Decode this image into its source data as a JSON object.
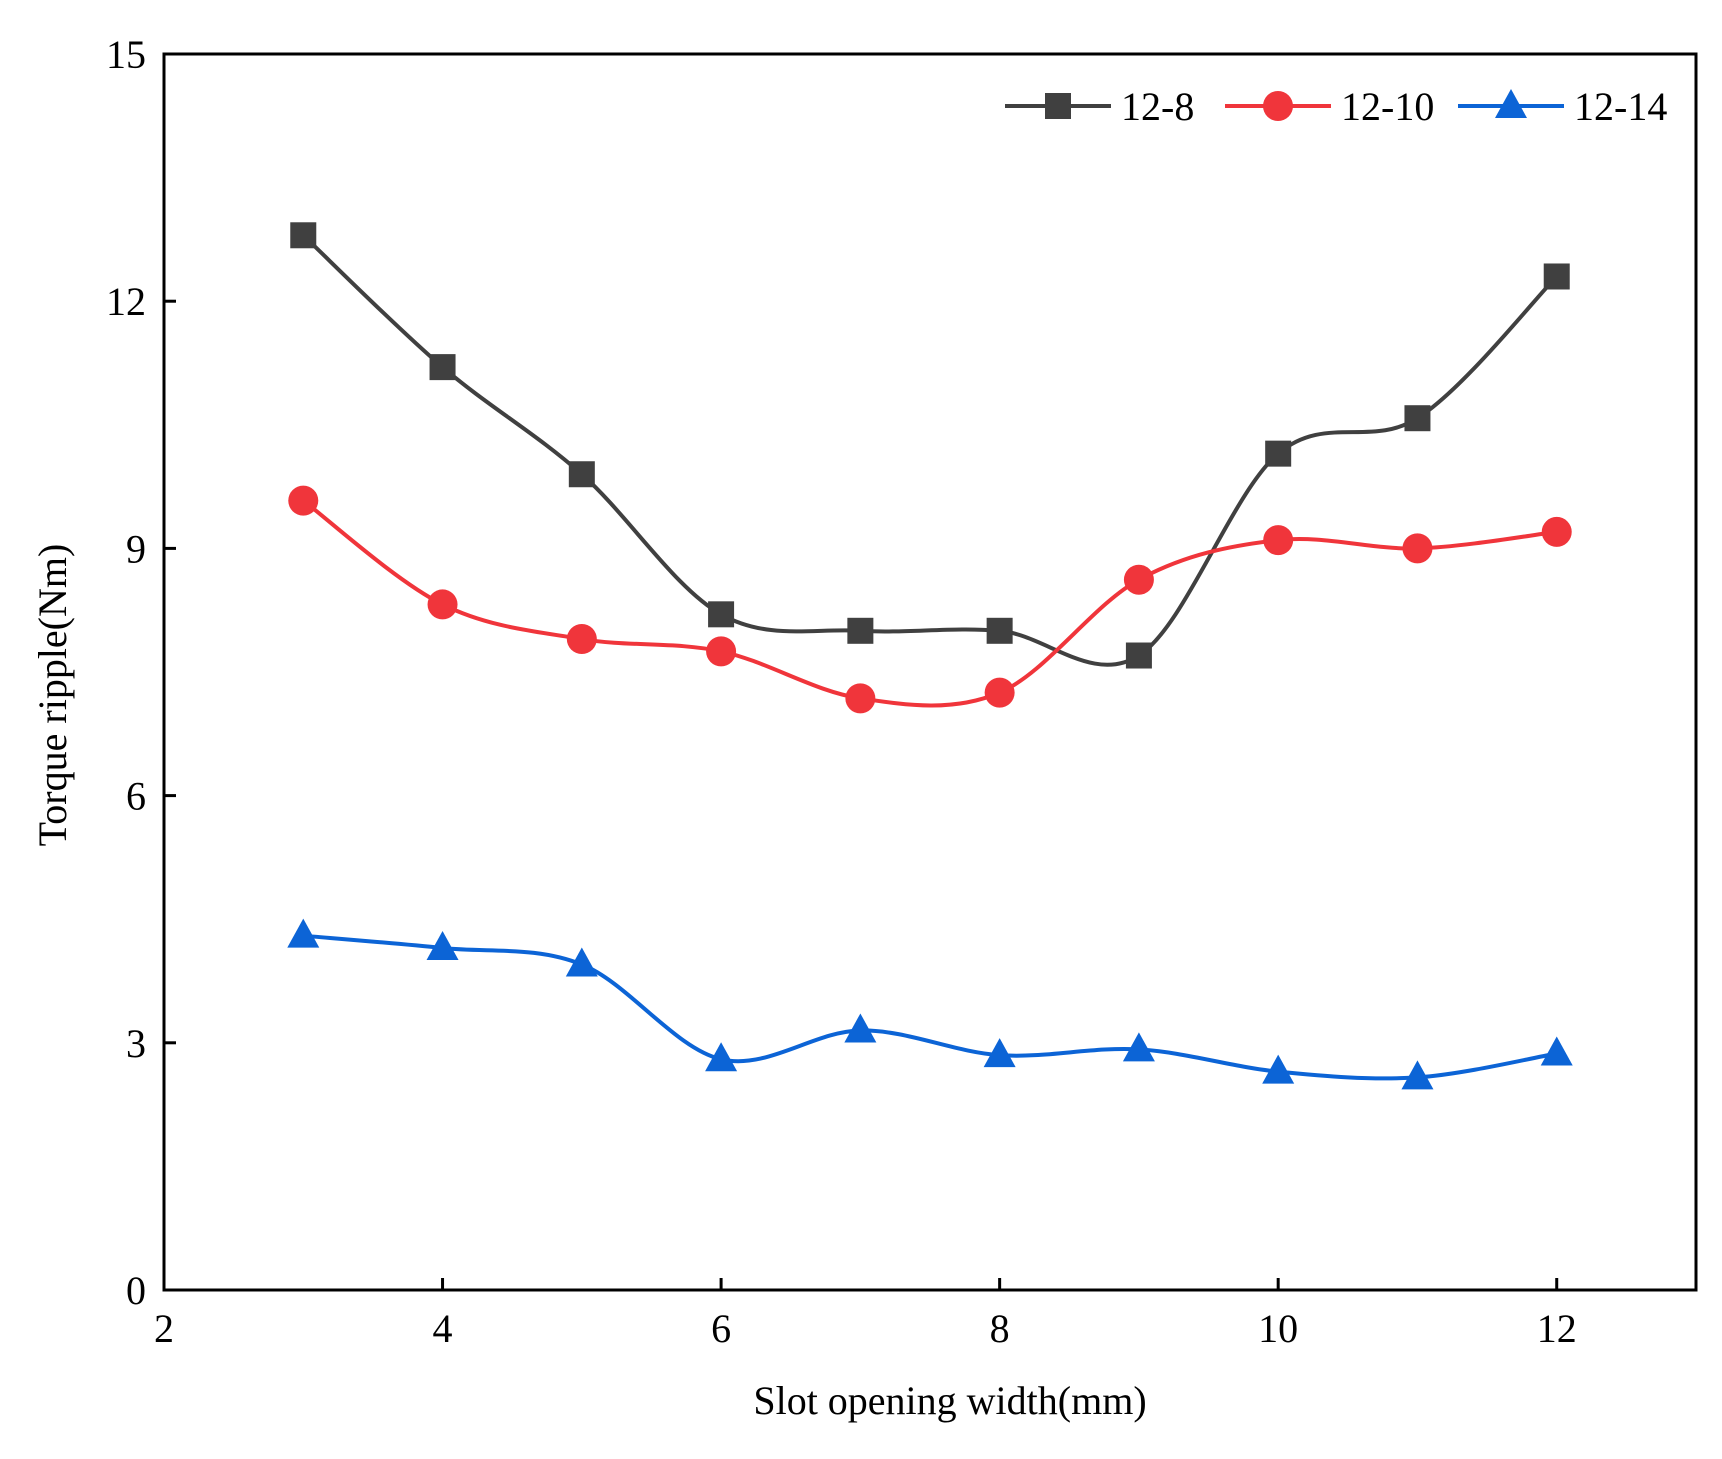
{
  "chart_data": {
    "type": "line",
    "title": "",
    "xlabel": "Slot opening width(mm)",
    "ylabel": "Torque ripple(Nm)",
    "xlim": [
      2,
      13
    ],
    "ylim": [
      0,
      15
    ],
    "xticks": [
      2,
      4,
      6,
      8,
      10,
      12
    ],
    "yticks": [
      0,
      3,
      6,
      9,
      12,
      15
    ],
    "grid": false,
    "legend_position": "top-right",
    "x": [
      3,
      4,
      5,
      6,
      7,
      8,
      9,
      10,
      11,
      12
    ],
    "series": [
      {
        "name": "12-8",
        "marker": "square",
        "color": "#404040",
        "values": [
          12.8,
          11.2,
          9.9,
          8.2,
          8.0,
          8.0,
          7.7,
          10.15,
          10.58,
          12.3
        ]
      },
      {
        "name": "12-10",
        "marker": "circle",
        "color": "#f0353b",
        "values": [
          9.58,
          8.32,
          7.9,
          7.75,
          7.18,
          7.25,
          8.62,
          9.1,
          9.0,
          9.2
        ]
      },
      {
        "name": "12-14",
        "marker": "triangle",
        "color": "#0c64d6",
        "values": [
          4.3,
          4.15,
          3.95,
          2.8,
          3.15,
          2.85,
          2.92,
          2.65,
          2.58,
          2.87
        ]
      }
    ]
  }
}
